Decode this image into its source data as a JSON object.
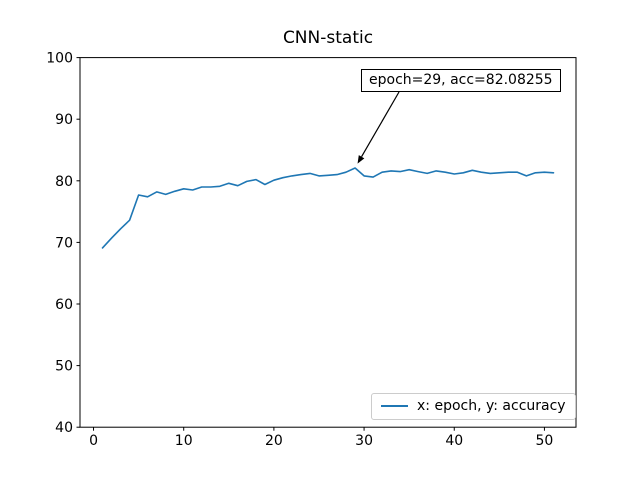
{
  "chart_data": {
    "type": "line",
    "title": "CNN-static",
    "xlabel": "",
    "ylabel": "",
    "xlim": [
      -1.5,
      53.5
    ],
    "ylim": [
      40,
      100
    ],
    "xticks": [
      0,
      10,
      20,
      30,
      40,
      50
    ],
    "yticks": [
      40,
      50,
      60,
      70,
      80,
      90,
      100
    ],
    "grid": false,
    "background_color": "#ffffff",
    "axes_color": "#000000",
    "series": [
      {
        "name": "x: epoch, y: accuracy",
        "color": "#1f77b4",
        "x": [
          1,
          2,
          3,
          4,
          5,
          6,
          7,
          8,
          9,
          10,
          11,
          12,
          13,
          14,
          15,
          16,
          17,
          18,
          19,
          20,
          21,
          22,
          23,
          24,
          25,
          26,
          27,
          28,
          29,
          30,
          31,
          32,
          33,
          34,
          35,
          36,
          37,
          38,
          39,
          40,
          41,
          42,
          43,
          44,
          45,
          46,
          47,
          48,
          49,
          50,
          51
        ],
        "values": [
          69.1,
          70.7,
          72.2,
          73.6,
          77.7,
          77.4,
          78.2,
          77.8,
          78.3,
          78.7,
          78.5,
          79.0,
          79.0,
          79.1,
          79.6,
          79.2,
          79.9,
          80.2,
          79.4,
          80.1,
          80.5,
          80.8,
          81.0,
          81.2,
          80.8,
          80.9,
          81.0,
          81.4,
          82.08255,
          80.8,
          80.6,
          81.4,
          81.6,
          81.5,
          81.8,
          81.5,
          81.2,
          81.6,
          81.4,
          81.1,
          81.3,
          81.7,
          81.4,
          81.2,
          81.3,
          81.4,
          81.4,
          80.8,
          81.3,
          81.4,
          81.3
        ]
      }
    ],
    "legend": {
      "label": "x: epoch, y: accuracy",
      "position": "lower right"
    },
    "annotation": {
      "text": "epoch=29, acc=82.08255",
      "target": {
        "epoch": 29,
        "acc": 82.08255
      }
    }
  }
}
